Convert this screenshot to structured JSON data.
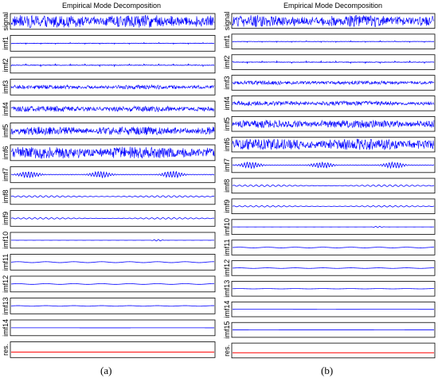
{
  "chart_data": [
    {
      "type": "line",
      "title": "Empirical Mode Decomposition",
      "panel_label": "(a)",
      "rows": [
        {
          "label": "signal",
          "amplitude": 0.9,
          "style": "dense"
        },
        {
          "label": "imf1",
          "amplitude": 0.1,
          "style": "spiky"
        },
        {
          "label": "imf2",
          "amplitude": 0.15,
          "style": "spiky"
        },
        {
          "label": "imf3",
          "amplitude": 0.3,
          "style": "dense"
        },
        {
          "label": "imf4",
          "amplitude": 0.4,
          "style": "dense"
        },
        {
          "label": "imf5",
          "amplitude": 0.6,
          "style": "dense"
        },
        {
          "label": "imf6",
          "amplitude": 0.85,
          "style": "dense"
        },
        {
          "label": "imf7",
          "amplitude": 0.5,
          "style": "bursty"
        },
        {
          "label": "imf8",
          "amplitude": 0.12,
          "style": "wave"
        },
        {
          "label": "imf9",
          "amplitude": 0.1,
          "style": "wave"
        },
        {
          "label": "imf10",
          "amplitude": 0.12,
          "style": "blip"
        },
        {
          "label": "imf11",
          "amplitude": 0.08,
          "style": "slow"
        },
        {
          "label": "imf12",
          "amplitude": 0.06,
          "style": "slow"
        },
        {
          "label": "imf13",
          "amplitude": 0.05,
          "style": "slow"
        },
        {
          "label": "imf14",
          "amplitude": 0.02,
          "style": "flat"
        },
        {
          "label": "res.",
          "amplitude": 0.0,
          "style": "residue"
        }
      ]
    },
    {
      "type": "line",
      "title": "Empirical Mode Decomposition",
      "panel_label": "(b)",
      "rows": [
        {
          "label": "signal",
          "amplitude": 0.9,
          "style": "dense"
        },
        {
          "label": "imf1",
          "amplitude": 0.1,
          "style": "spiky"
        },
        {
          "label": "imf2",
          "amplitude": 0.15,
          "style": "spiky"
        },
        {
          "label": "imf3",
          "amplitude": 0.3,
          "style": "dense"
        },
        {
          "label": "imf4",
          "amplitude": 0.35,
          "style": "dense"
        },
        {
          "label": "imf5",
          "amplitude": 0.6,
          "style": "dense"
        },
        {
          "label": "imf6",
          "amplitude": 0.85,
          "style": "dense"
        },
        {
          "label": "imf7",
          "amplitude": 0.5,
          "style": "bursty"
        },
        {
          "label": "imf8",
          "amplitude": 0.12,
          "style": "wave"
        },
        {
          "label": "imf9",
          "amplitude": 0.1,
          "style": "wave"
        },
        {
          "label": "imf10",
          "amplitude": 0.1,
          "style": "blip"
        },
        {
          "label": "imf11",
          "amplitude": 0.06,
          "style": "slow"
        },
        {
          "label": "imf12",
          "amplitude": 0.05,
          "style": "slow"
        },
        {
          "label": "imf13",
          "amplitude": 0.03,
          "style": "slow"
        },
        {
          "label": "imf14",
          "amplitude": 0.02,
          "style": "flat"
        },
        {
          "label": "imf15",
          "amplitude": 0.01,
          "style": "flat"
        },
        {
          "label": "res.",
          "amplitude": 0.0,
          "style": "residue"
        }
      ]
    }
  ],
  "colors": {
    "trace": "#0000ff",
    "residue": "#ff0000",
    "frame": "#000000"
  }
}
